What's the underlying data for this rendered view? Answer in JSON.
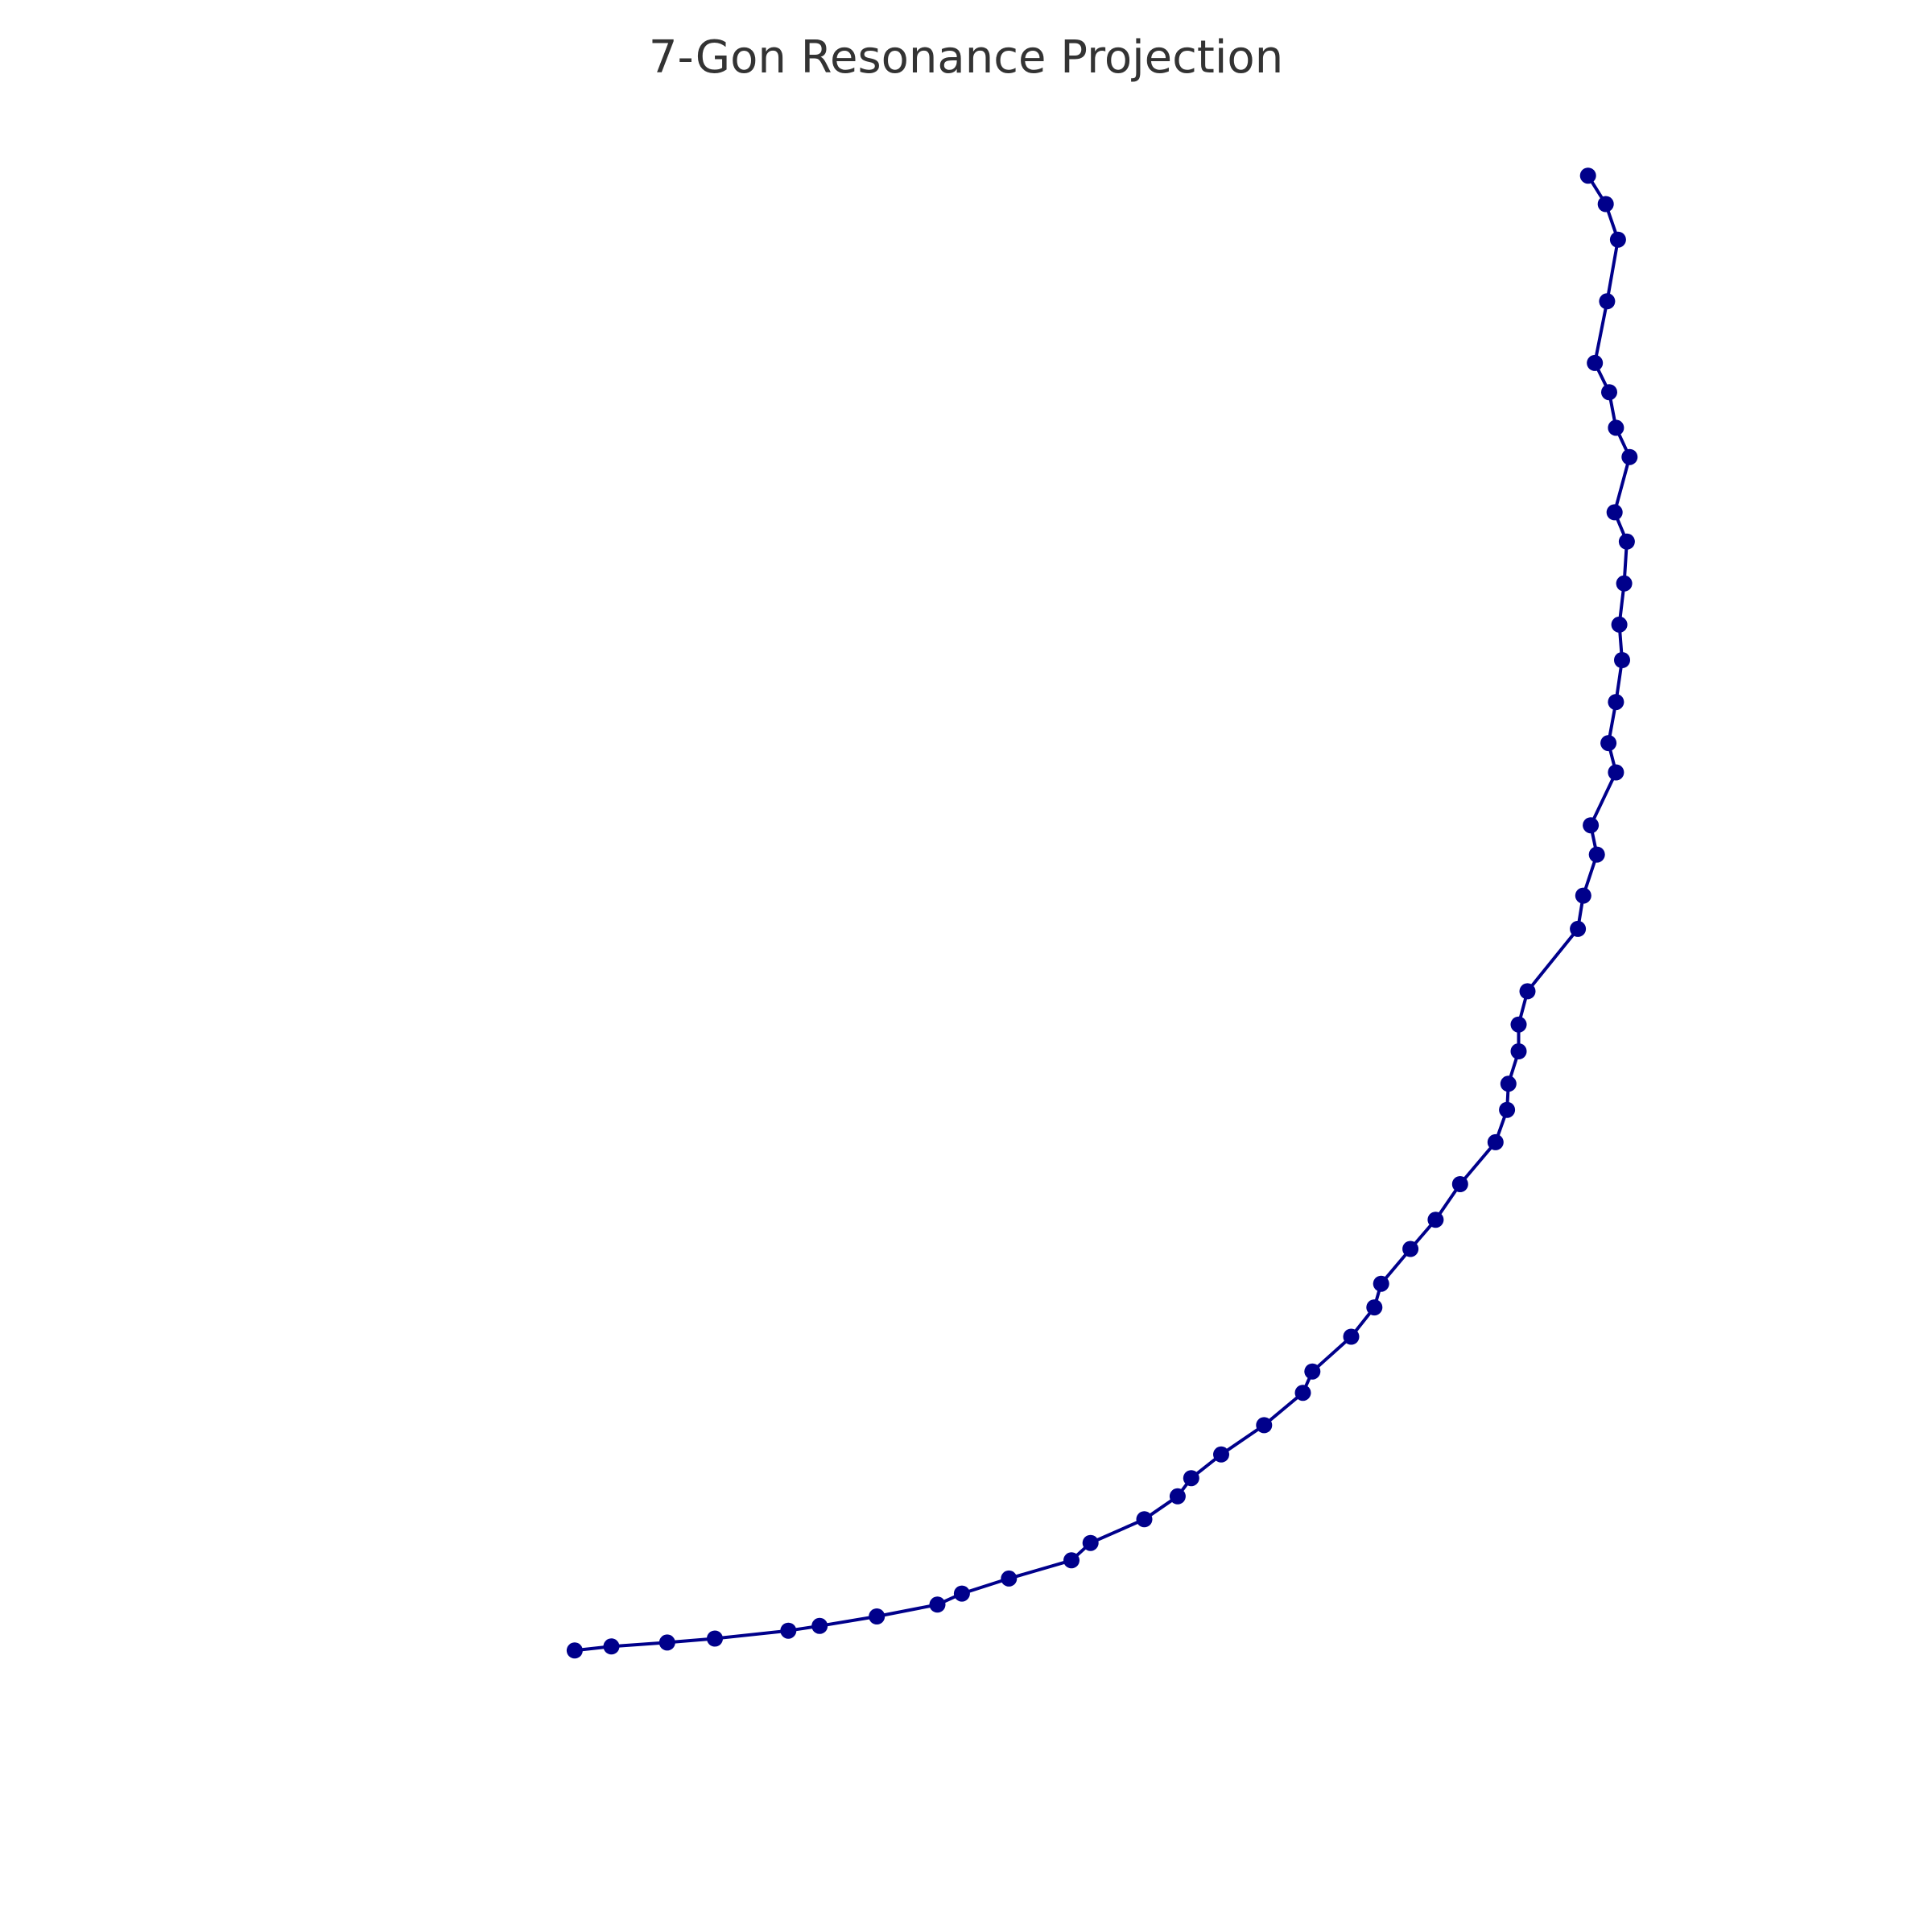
{
  "chart_data": {
    "type": "line",
    "title": "7-Gon Resonance Projection",
    "xlabel": "",
    "ylabel": "",
    "grid": false,
    "axes_visible": false,
    "xlim": [
      -1.1,
      1.1
    ],
    "ylim": [
      -1.1,
      1.1
    ],
    "color": "#00008B",
    "marker": "circle",
    "series": [
      {
        "points": [
          [
            0.914,
            1.0
          ],
          [
            0.94,
            0.964
          ],
          [
            0.958,
            0.919
          ],
          [
            0.942,
            0.841
          ],
          [
            0.924,
            0.763
          ],
          [
            0.945,
            0.726
          ],
          [
            0.955,
            0.681
          ],
          [
            0.975,
            0.644
          ],
          [
            0.953,
            0.574
          ],
          [
            0.971,
            0.537
          ],
          [
            0.967,
            0.484
          ],
          [
            0.96,
            0.432
          ],
          [
            0.964,
            0.387
          ],
          [
            0.955,
            0.334
          ],
          [
            0.944,
            0.282
          ],
          [
            0.955,
            0.245
          ],
          [
            0.918,
            0.178
          ],
          [
            0.927,
            0.141
          ],
          [
            0.907,
            0.089
          ],
          [
            0.899,
            0.047
          ],
          [
            0.825,
            -0.032
          ],
          [
            0.812,
            -0.074
          ],
          [
            0.812,
            -0.108
          ],
          [
            0.797,
            -0.149
          ],
          [
            0.795,
            -0.182
          ],
          [
            0.778,
            -0.223
          ],
          [
            0.726,
            -0.276
          ],
          [
            0.69,
            -0.321
          ],
          [
            0.653,
            -0.358
          ],
          [
            0.61,
            -0.402
          ],
          [
            0.6,
            -0.432
          ],
          [
            0.566,
            -0.469
          ],
          [
            0.509,
            -0.513
          ],
          [
            0.495,
            -0.54
          ],
          [
            0.438,
            -0.581
          ],
          [
            0.375,
            -0.618
          ],
          [
            0.331,
            -0.648
          ],
          [
            0.311,
            -0.671
          ],
          [
            0.262,
            -0.7
          ],
          [
            0.183,
            -0.73
          ],
          [
            0.155,
            -0.752
          ],
          [
            0.063,
            -0.775
          ],
          [
            -0.006,
            -0.794
          ],
          [
            -0.042,
            -0.808
          ],
          [
            -0.131,
            -0.823
          ],
          [
            -0.215,
            -0.835
          ],
          [
            -0.261,
            -0.841
          ],
          [
            -0.369,
            -0.851
          ],
          [
            -0.439,
            -0.856
          ],
          [
            -0.521,
            -0.861
          ],
          [
            -0.575,
            -0.866
          ]
        ]
      }
    ]
  }
}
